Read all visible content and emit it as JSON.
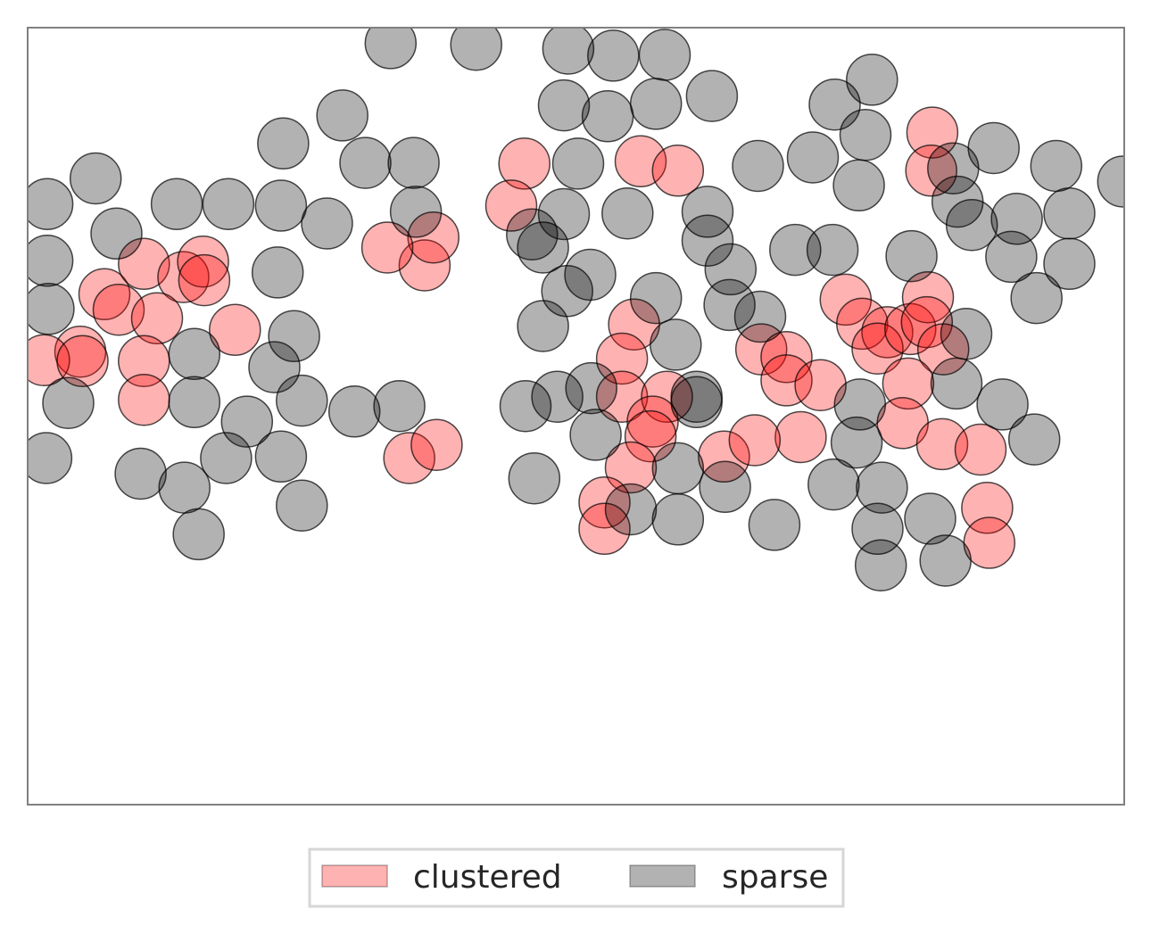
{
  "chart_data": {
    "type": "scatter",
    "title": "",
    "xlabel": "",
    "ylabel": "",
    "xlim": [
      0,
      100
    ],
    "ylim": [
      0,
      100
    ],
    "grid": false,
    "axes_ticks": false,
    "legend": {
      "placement": "bottom-center",
      "columns": 2
    },
    "series": [
      {
        "name": "clustered",
        "color": "#ff0000",
        "alpha": 0.3,
        "edgecolor": "#000000",
        "points": [
          [
            4.8,
            58.3
          ],
          [
            7.0,
            65.7
          ],
          [
            10.6,
            69.6
          ],
          [
            14.2,
            67.9
          ],
          [
            16.0,
            69.9
          ],
          [
            16.1,
            67.5
          ],
          [
            8.3,
            63.7
          ],
          [
            11.8,
            62.6
          ],
          [
            18.9,
            61.1
          ],
          [
            1.5,
            57.2
          ],
          [
            5.0,
            57.1
          ],
          [
            10.6,
            57.1
          ],
          [
            10.6,
            52.1
          ],
          [
            36.2,
            69.4
          ],
          [
            37.0,
            73.0
          ],
          [
            32.8,
            71.7
          ],
          [
            34.8,
            44.6
          ],
          [
            37.3,
            46.3
          ],
          [
            45.3,
            82.5
          ],
          [
            44.1,
            77.1
          ],
          [
            55.9,
            82.8
          ],
          [
            59.3,
            81.6
          ],
          [
            55.3,
            61.8
          ],
          [
            54.2,
            57.4
          ],
          [
            54.2,
            52.5
          ],
          [
            58.3,
            52.5
          ],
          [
            57.0,
            49.3
          ],
          [
            56.8,
            47.4
          ],
          [
            55.0,
            43.4
          ],
          [
            52.6,
            38.9
          ],
          [
            52.6,
            35.5
          ],
          [
            63.5,
            44.8
          ],
          [
            66.9,
            58.6
          ],
          [
            69.2,
            57.6
          ],
          [
            69.2,
            54.6
          ],
          [
            72.3,
            54.0
          ],
          [
            70.5,
            47.3
          ],
          [
            66.3,
            46.9
          ],
          [
            74.6,
            65.0
          ],
          [
            76.1,
            61.9
          ],
          [
            78.4,
            60.8
          ],
          [
            77.5,
            58.7
          ],
          [
            80.5,
            61.2
          ],
          [
            82.1,
            65.3
          ],
          [
            82.0,
            62.1
          ],
          [
            83.5,
            58.6
          ],
          [
            80.3,
            54.2
          ],
          [
            79.8,
            49.1
          ],
          [
            83.4,
            46.4
          ],
          [
            86.9,
            45.7
          ],
          [
            87.5,
            38.2
          ],
          [
            87.7,
            33.7
          ],
          [
            82.5,
            86.5
          ],
          [
            82.4,
            81.6
          ]
        ]
      },
      {
        "name": "sparse",
        "color": "#000000",
        "alpha": 0.3,
        "edgecolor": "#000000",
        "points": [
          [
            33.1,
            98.0
          ],
          [
            40.9,
            97.8
          ],
          [
            49.3,
            97.3
          ],
          [
            53.4,
            96.4
          ],
          [
            58.1,
            96.5
          ],
          [
            48.9,
            90.0
          ],
          [
            52.9,
            88.6
          ],
          [
            57.3,
            90.2
          ],
          [
            62.4,
            91.2
          ],
          [
            46.0,
            73.4
          ],
          [
            28.7,
            88.7
          ],
          [
            23.3,
            85.1
          ],
          [
            30.8,
            82.6
          ],
          [
            35.2,
            82.6
          ],
          [
            6.2,
            80.6
          ],
          [
            1.8,
            77.3
          ],
          [
            8.1,
            73.5
          ],
          [
            13.6,
            77.3
          ],
          [
            18.3,
            77.3
          ],
          [
            23.1,
            77.1
          ],
          [
            27.3,
            74.8
          ],
          [
            35.4,
            76.3
          ],
          [
            1.8,
            70.0
          ],
          [
            1.9,
            63.8
          ],
          [
            22.8,
            68.5
          ],
          [
            24.3,
            60.3
          ],
          [
            15.2,
            58.0
          ],
          [
            3.7,
            51.7
          ],
          [
            15.2,
            51.8
          ],
          [
            20.0,
            49.3
          ],
          [
            22.5,
            56.3
          ],
          [
            25.0,
            52.0
          ],
          [
            29.8,
            50.6
          ],
          [
            33.9,
            51.3
          ],
          [
            1.7,
            44.6
          ],
          [
            10.3,
            42.6
          ],
          [
            14.3,
            40.8
          ],
          [
            18.1,
            44.6
          ],
          [
            23.1,
            44.8
          ],
          [
            25.0,
            38.5
          ],
          [
            15.6,
            34.8
          ],
          [
            45.4,
            51.3
          ],
          [
            48.3,
            52.5
          ],
          [
            50.2,
            82.5
          ],
          [
            48.9,
            76.0
          ],
          [
            54.7,
            76.1
          ],
          [
            49.2,
            66.1
          ],
          [
            47.0,
            61.6
          ],
          [
            51.4,
            53.6
          ],
          [
            47.0,
            71.7
          ],
          [
            51.3,
            68.2
          ],
          [
            57.3,
            65.2
          ],
          [
            62.0,
            72.6
          ],
          [
            62.0,
            76.3
          ],
          [
            64.1,
            68.9
          ],
          [
            64.0,
            64.3
          ],
          [
            66.8,
            62.8
          ],
          [
            61.0,
            52.5
          ],
          [
            59.1,
            59.2
          ],
          [
            61.0,
            51.8
          ],
          [
            46.2,
            42.0
          ],
          [
            51.8,
            47.6
          ],
          [
            55.0,
            38.0
          ],
          [
            59.3,
            43.3
          ],
          [
            59.3,
            36.7
          ],
          [
            63.6,
            40.9
          ],
          [
            68.1,
            36.0
          ],
          [
            66.6,
            82.2
          ],
          [
            71.6,
            83.3
          ],
          [
            73.6,
            90.1
          ],
          [
            77.0,
            93.3
          ],
          [
            76.4,
            86.2
          ],
          [
            75.8,
            79.7
          ],
          [
            84.4,
            81.9
          ],
          [
            88.1,
            84.5
          ],
          [
            84.8,
            77.6
          ],
          [
            86.1,
            74.6
          ],
          [
            90.2,
            75.4
          ],
          [
            89.7,
            70.5
          ],
          [
            93.8,
            82.2
          ],
          [
            99.9,
            80.2
          ],
          [
            95.0,
            76.1
          ],
          [
            95.0,
            69.6
          ],
          [
            92.0,
            65.2
          ],
          [
            73.4,
            71.4
          ],
          [
            70.0,
            71.4
          ],
          [
            80.6,
            70.6
          ],
          [
            85.6,
            60.6
          ],
          [
            84.7,
            54.2
          ],
          [
            88.9,
            51.5
          ],
          [
            91.8,
            47.0
          ],
          [
            75.9,
            51.5
          ],
          [
            75.6,
            46.6
          ],
          [
            73.5,
            41.2
          ],
          [
            77.9,
            40.8
          ],
          [
            82.3,
            36.8
          ],
          [
            83.7,
            31.4
          ],
          [
            77.5,
            35.5
          ],
          [
            77.8,
            30.8
          ]
        ]
      }
    ]
  }
}
